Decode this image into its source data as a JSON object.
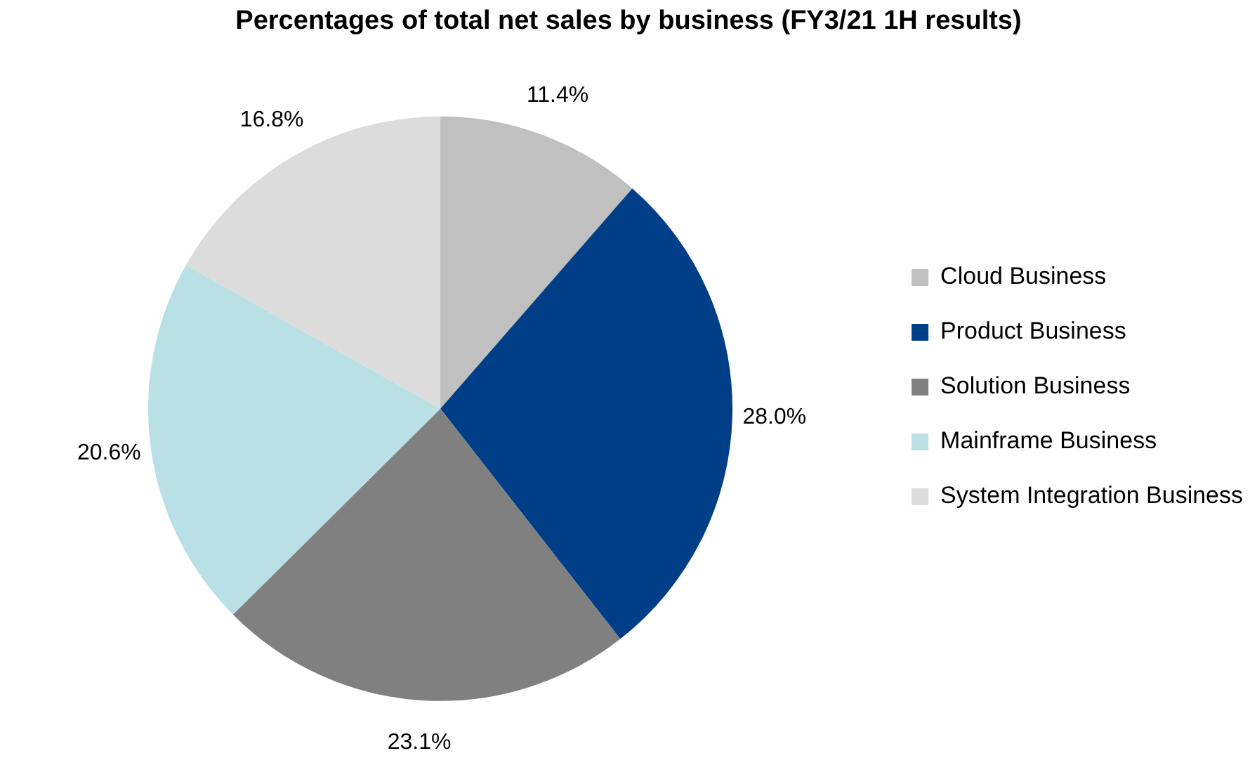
{
  "chart_data": {
    "type": "pie",
    "title": "Percentages of total net sales by business (FY3/21 1H results)",
    "categories": [
      "Cloud Business",
      "Product Business",
      "Solution Business",
      "Mainframe Business",
      "System Integration Business"
    ],
    "values": [
      11.4,
      28.0,
      23.1,
      20.6,
      16.8
    ],
    "colors": [
      "#c0c0c0",
      "#003f87",
      "#808080",
      "#b9e0e5",
      "#dcdcdc"
    ],
    "value_labels": [
      "11.4%",
      "28.0%",
      "23.1%",
      "20.6%",
      "16.8%"
    ],
    "legend": "right"
  }
}
